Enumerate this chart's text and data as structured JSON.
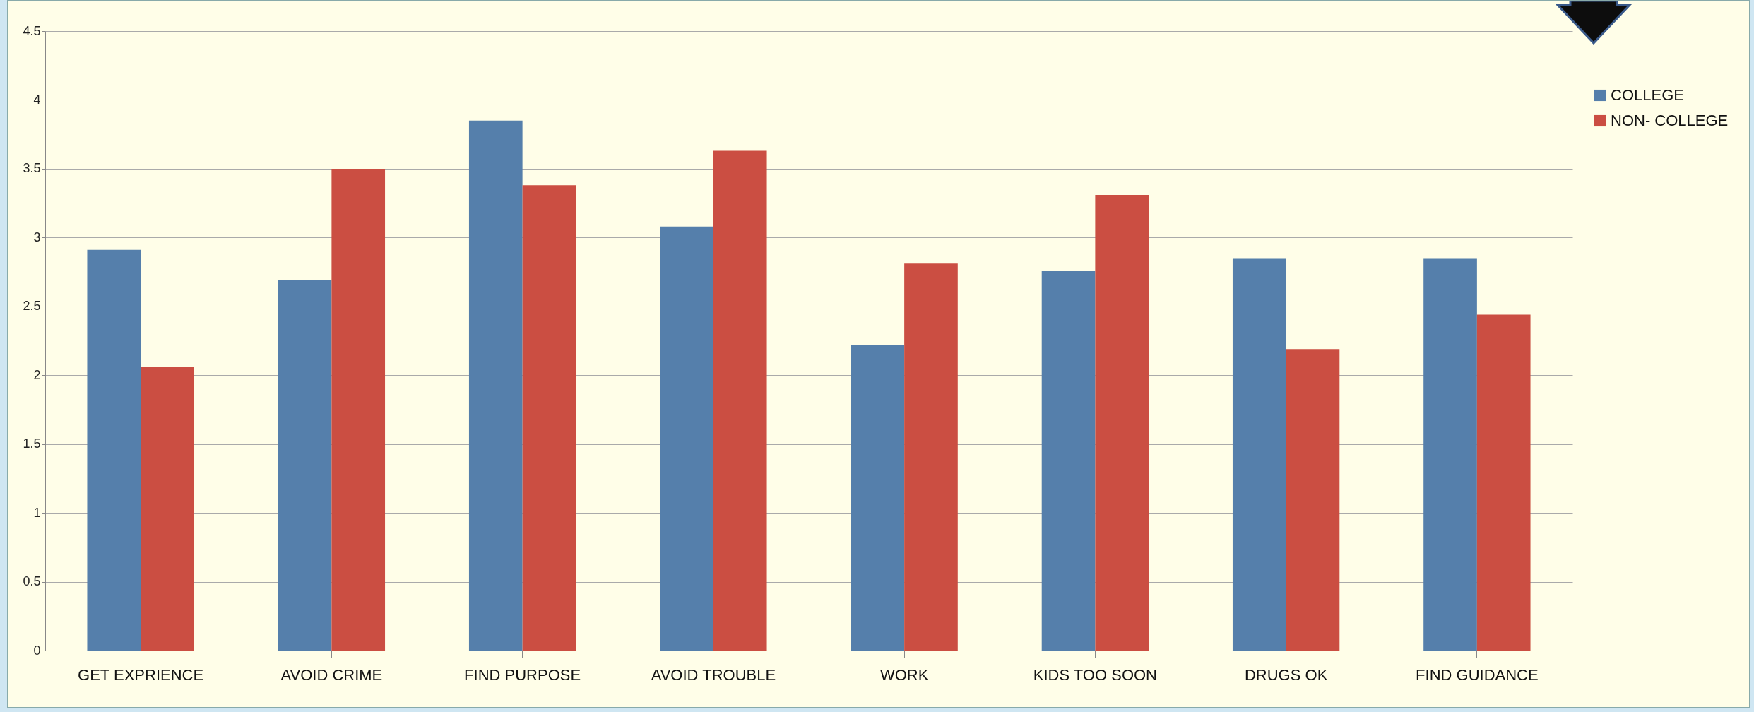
{
  "chart_data": {
    "type": "bar",
    "categories": [
      "GET EXPRIENCE",
      "AVOID CRIME",
      "FIND PURPOSE",
      "AVOID TROUBLE",
      "WORK",
      "KIDS TOO SOON",
      "DRUGS OK",
      "FIND GUIDANCE"
    ],
    "series": [
      {
        "name": "COLLEGE",
        "color": "#557fab",
        "values": [
          2.91,
          2.69,
          3.85,
          3.08,
          2.22,
          2.76,
          2.85,
          2.85
        ]
      },
      {
        "name": "NON- COLLEGE",
        "color": "#cb4e42",
        "values": [
          2.06,
          3.5,
          3.38,
          3.63,
          2.81,
          3.31,
          2.19,
          2.44
        ]
      }
    ],
    "ylim": [
      0,
      4.5
    ],
    "yticks": [
      0,
      0.5,
      1,
      1.5,
      2,
      2.5,
      3,
      3.5,
      4,
      4.5
    ],
    "grid": "y",
    "legend": "right"
  }
}
